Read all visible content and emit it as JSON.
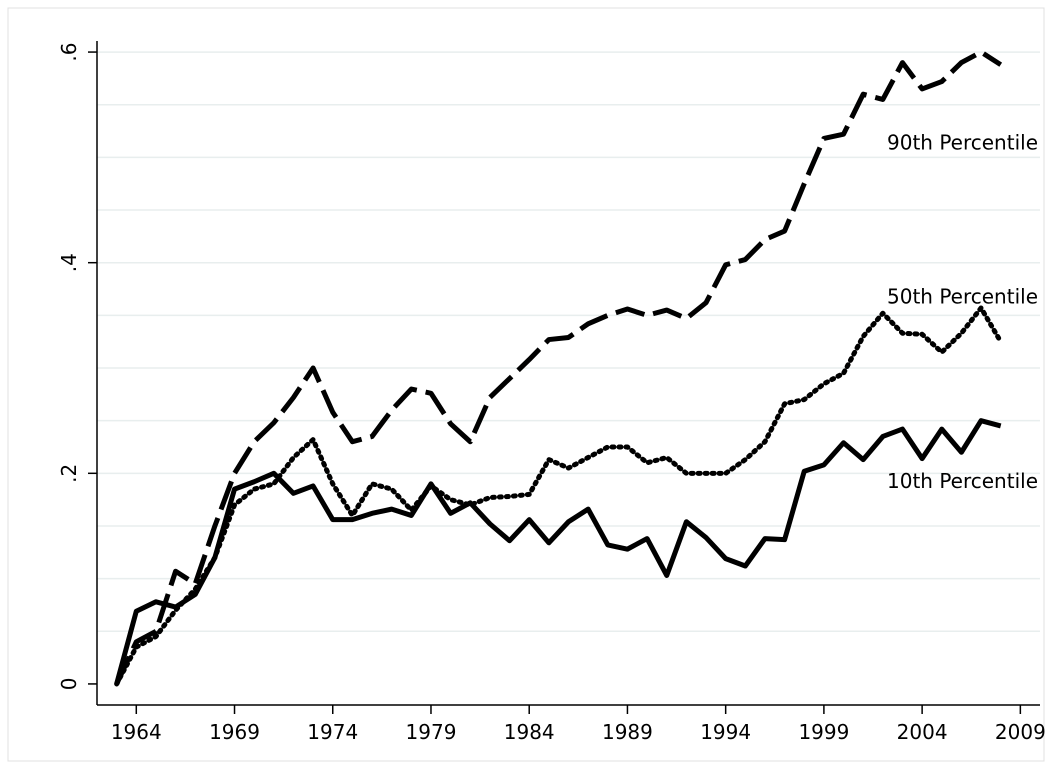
{
  "chart_data": {
    "type": "line",
    "x": [
      1963,
      1964,
      1965,
      1966,
      1967,
      1968,
      1969,
      1970,
      1971,
      1972,
      1973,
      1974,
      1975,
      1976,
      1977,
      1978,
      1979,
      1980,
      1981,
      1982,
      1983,
      1984,
      1985,
      1986,
      1987,
      1988,
      1989,
      1990,
      1991,
      1992,
      1993,
      1994,
      1995,
      1996,
      1997,
      1998,
      1999,
      2000,
      2001,
      2002,
      2003,
      2004,
      2005,
      2006,
      2007,
      2008
    ],
    "series": [
      {
        "name": "90th Percentile",
        "color": "#000000",
        "style": "dashed",
        "values": [
          0,
          0.04,
          0.05,
          0.107,
          0.095,
          0.15,
          0.2,
          0.23,
          0.248,
          0.272,
          0.3,
          0.258,
          0.23,
          0.235,
          0.26,
          0.28,
          0.276,
          0.247,
          0.23,
          0.272,
          0.29,
          0.308,
          0.327,
          0.329,
          0.342,
          0.35,
          0.356,
          0.35,
          0.355,
          0.347,
          0.362,
          0.398,
          0.403,
          0.422,
          0.43,
          0.475,
          0.518,
          0.522,
          0.56,
          0.555,
          0.59,
          0.565,
          0.572,
          0.59,
          0.6,
          0.588
        ]
      },
      {
        "name": "50th Percentile",
        "color": "#000000",
        "style": "dotted",
        "values": [
          0,
          0.035,
          0.045,
          0.07,
          0.09,
          0.12,
          0.17,
          0.185,
          0.19,
          0.215,
          0.232,
          0.19,
          0.16,
          0.19,
          0.185,
          0.165,
          0.188,
          0.175,
          0.17,
          0.177,
          0.178,
          0.18,
          0.213,
          0.205,
          0.215,
          0.225,
          0.225,
          0.21,
          0.215,
          0.2,
          0.2,
          0.2,
          0.213,
          0.23,
          0.266,
          0.27,
          0.285,
          0.295,
          0.33,
          0.352,
          0.333,
          0.332,
          0.315,
          0.333,
          0.357,
          0.325
        ]
      },
      {
        "name": "10th Percentile",
        "color": "#000000",
        "style": "solid",
        "values": [
          0,
          0.069,
          0.078,
          0.073,
          0.085,
          0.12,
          0.185,
          0.192,
          0.2,
          0.181,
          0.188,
          0.156,
          0.156,
          0.162,
          0.166,
          0.16,
          0.19,
          0.162,
          0.172,
          0.152,
          0.136,
          0.156,
          0.134,
          0.154,
          0.166,
          0.132,
          0.128,
          0.138,
          0.103,
          0.154,
          0.139,
          0.119,
          0.112,
          0.138,
          0.137,
          0.202,
          0.208,
          0.229,
          0.213,
          0.235,
          0.242,
          0.214,
          0.242,
          0.22,
          0.25,
          0.245
        ]
      }
    ],
    "xlim": [
      1962,
      2010
    ],
    "xticks": [
      1964,
      1969,
      1974,
      1979,
      1984,
      1989,
      1994,
      1999,
      2004,
      2009
    ],
    "ylim": [
      -0.02,
      0.62
    ],
    "yticks": [
      0,
      {
        "value": 0.2,
        "label": ".2"
      },
      {
        "value": 0.4,
        "label": ".4"
      },
      {
        "value": 0.6,
        "label": ".6"
      }
    ],
    "ygrid": [
      0.05,
      0.1,
      0.15,
      0.2,
      0.25,
      0.3,
      0.35,
      0.4,
      0.45,
      0.5,
      0.55,
      0.6
    ],
    "grid": true
  }
}
